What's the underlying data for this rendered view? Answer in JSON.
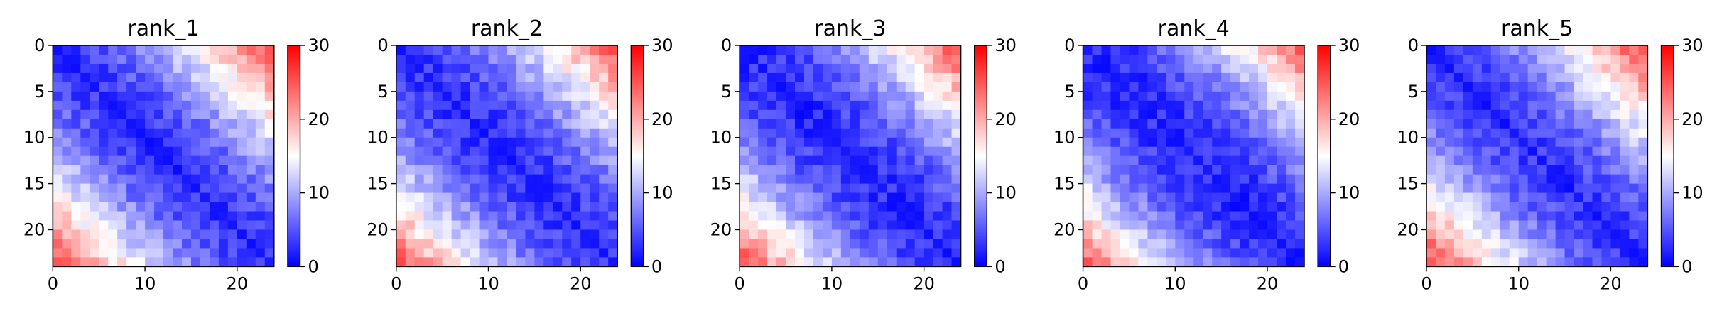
{
  "chart_data": [
    {
      "type": "heatmap",
      "title": "rank_1",
      "size": 24,
      "seed": 11,
      "x_ticks": [
        0,
        10,
        20
      ],
      "y_ticks": [
        0,
        5,
        10,
        15,
        20
      ],
      "colorbar": {
        "min": 0,
        "max": 30,
        "ticks": [
          0,
          10,
          20,
          30
        ],
        "colormap": "bwr",
        "center": 15
      },
      "near": 3,
      "far": 26,
      "curve": 1.6
    },
    {
      "type": "heatmap",
      "title": "rank_2",
      "size": 24,
      "seed": 23,
      "x_ticks": [
        0,
        10,
        20
      ],
      "y_ticks": [
        0,
        5,
        10,
        15,
        20
      ],
      "colorbar": {
        "min": 0,
        "max": 30,
        "ticks": [
          0,
          10,
          20,
          30
        ],
        "colormap": "bwr",
        "center": 15
      },
      "near": 3,
      "far": 25,
      "curve": 1.7
    },
    {
      "type": "heatmap",
      "title": "rank_3",
      "size": 24,
      "seed": 37,
      "x_ticks": [
        0,
        10,
        20
      ],
      "y_ticks": [
        0,
        5,
        10,
        15,
        20
      ],
      "colorbar": {
        "min": 0,
        "max": 30,
        "ticks": [
          0,
          10,
          20,
          30
        ],
        "colormap": "bwr",
        "center": 15
      },
      "near": 2.5,
      "far": 25,
      "curve": 1.7
    },
    {
      "type": "heatmap",
      "title": "rank_4",
      "size": 24,
      "seed": 41,
      "x_ticks": [
        0,
        10,
        20
      ],
      "y_ticks": [
        0,
        5,
        10,
        15,
        20
      ],
      "colorbar": {
        "min": 0,
        "max": 30,
        "ticks": [
          0,
          10,
          20,
          30
        ],
        "colormap": "bwr",
        "center": 15
      },
      "near": 2.5,
      "far": 24,
      "curve": 1.8
    },
    {
      "type": "heatmap",
      "title": "rank_5",
      "size": 24,
      "seed": 53,
      "x_ticks": [
        0,
        10,
        20
      ],
      "y_ticks": [
        0,
        5,
        10,
        15,
        20
      ],
      "colorbar": {
        "min": 0,
        "max": 30,
        "ticks": [
          0,
          10,
          20,
          30
        ],
        "colormap": "bwr",
        "center": 15
      },
      "near": 3,
      "far": 26,
      "curve": 1.6
    }
  ]
}
